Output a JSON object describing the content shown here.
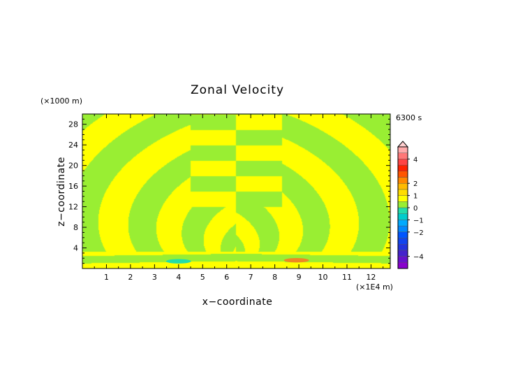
{
  "chart_data": {
    "type": "heatmap",
    "title": "Zonal Velocity",
    "xlabel": "x−coordinate",
    "ylabel": "z−coordinate",
    "x_unit": "(×1E4 m)",
    "y_unit": "(×1000 m)",
    "time_label": "6300 s",
    "xlim": [
      0,
      12.8
    ],
    "ylim": [
      0,
      30
    ],
    "x_ticks": [
      1,
      2,
      3,
      4,
      5,
      6,
      7,
      8,
      9,
      10,
      11,
      12
    ],
    "y_ticks": [
      4,
      8,
      12,
      16,
      20,
      24,
      28
    ],
    "field_pattern": "alternating yellow / green bands radiating upward and outward from the source near x=6.5, z=0; checkerboard split at x=6.4 above z=12",
    "band_values": [
      0.2,
      -0.2
    ],
    "band_colors": [
      "#ffff00",
      "#99ee33"
    ],
    "anomalies": [
      {
        "x": 4.0,
        "z": 1.4,
        "value": -1.2,
        "color": "#22ddaa"
      },
      {
        "x": 8.9,
        "z": 1.6,
        "value": 1.4,
        "color": "#ee8822"
      }
    ],
    "colorbar": {
      "tick_labels": [
        "4",
        "2",
        "1",
        "0",
        "−1",
        "−2",
        "−4"
      ],
      "tick_values": [
        4,
        2,
        1,
        0,
        -1,
        -2,
        -4
      ],
      "levels": [
        -5,
        -4.5,
        -4,
        -3.5,
        -3,
        -2.5,
        -2,
        -1.5,
        -1,
        -0.5,
        0,
        0.5,
        1,
        1.5,
        2,
        2.5,
        3,
        3.5,
        4,
        4.5,
        5
      ],
      "colors": [
        "#8800cc",
        "#6611cc",
        "#4422cc",
        "#2233dd",
        "#1144ee",
        "#0055ff",
        "#0088ff",
        "#00aaff",
        "#00cccc",
        "#22ddaa",
        "#99ee33",
        "#ffff00",
        "#ffdd00",
        "#ffbb00",
        "#ff8800",
        "#ff5500",
        "#ff2200",
        "#ff4444",
        "#ff7777",
        "#ffaaaa"
      ]
    }
  }
}
